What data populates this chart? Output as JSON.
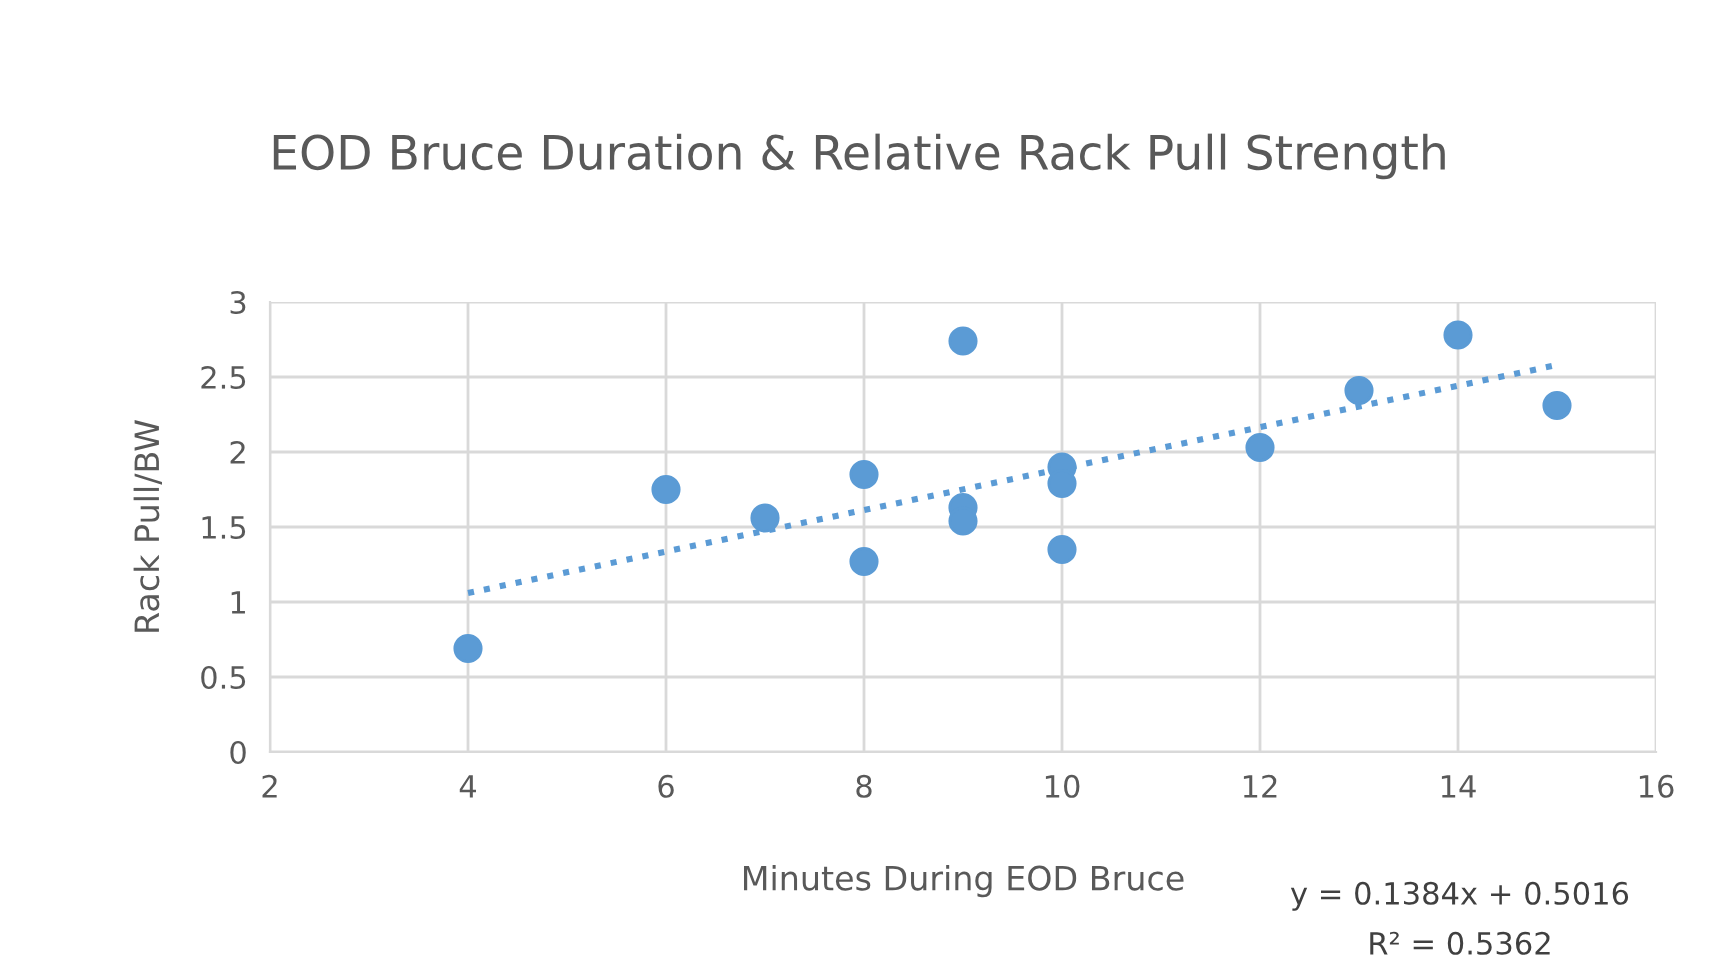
{
  "chart_data": {
    "type": "scatter",
    "title": "EOD Bruce Duration & Relative Rack Pull Strength",
    "xlabel": "Minutes During EOD Bruce",
    "ylabel": "Rack Pull/BW",
    "series": [
      {
        "color": "#5b9bd5",
        "marker": "circle",
        "x": [
          4,
          6,
          7,
          8,
          8,
          9,
          9,
          9,
          10,
          10,
          10,
          12,
          13,
          14,
          15
        ],
        "values": [
          0.69,
          1.75,
          1.56,
          1.85,
          1.27,
          2.74,
          1.63,
          1.54,
          1.9,
          1.79,
          1.35,
          2.03,
          2.41,
          2.78,
          2.31
        ]
      },
      {
        "type": "line",
        "color": "#5b9bd5",
        "line_style": "dotted",
        "marker": "none",
        "x": [
          4,
          15
        ],
        "values": [
          1.06,
          2.58
        ]
      }
    ],
    "xlim": [
      2,
      16
    ],
    "xticks": [
      2,
      4,
      6,
      8,
      10,
      12,
      14,
      16
    ],
    "ylim": [
      0,
      3
    ],
    "yticks": [
      0,
      0.5,
      1,
      1.5,
      2,
      2.5,
      3
    ],
    "grid": true,
    "legend": false,
    "annotations": [
      "y = 0.1384x + 0.5016",
      "R² = 0.5362"
    ]
  }
}
